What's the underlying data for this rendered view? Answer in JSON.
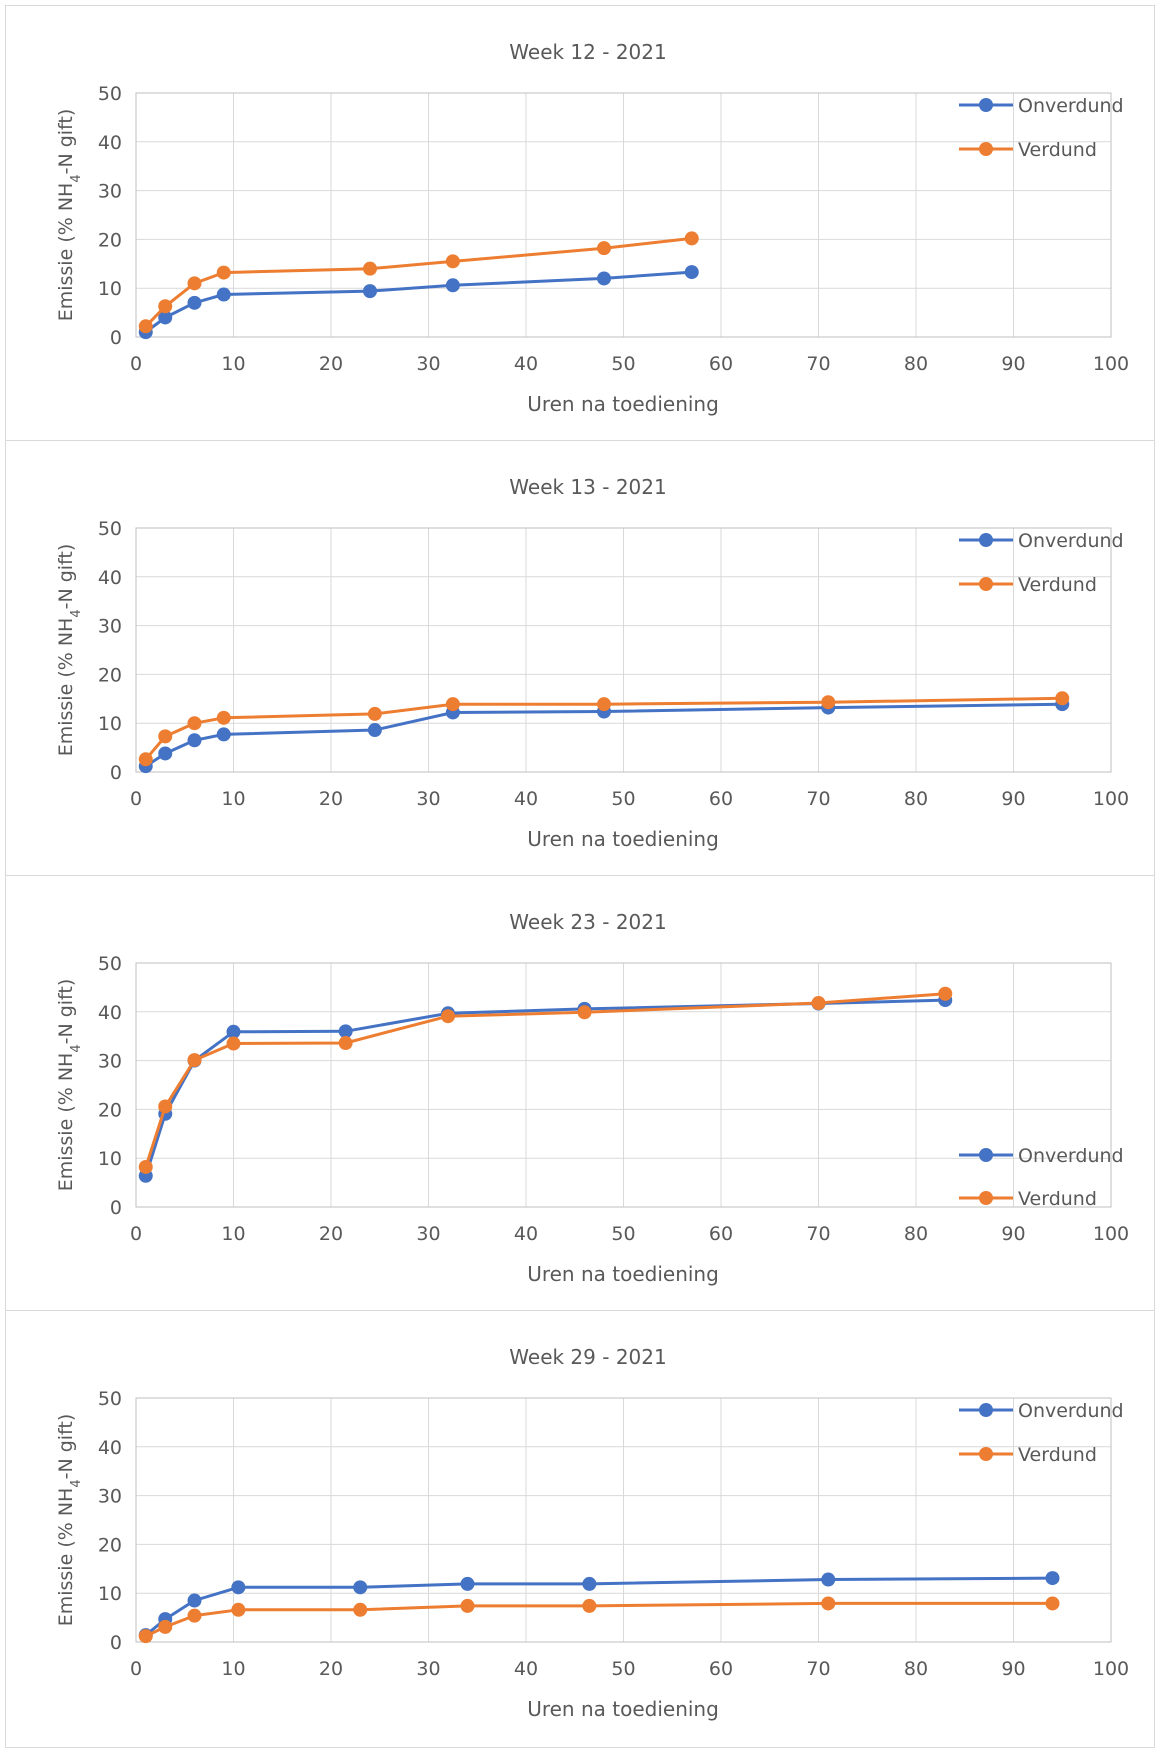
{
  "chart_data": [
    {
      "type": "line",
      "title": "Week 12 - 2021",
      "xlabel": "Uren na toediening",
      "ylabel_parts": [
        "Emissie (% NH",
        "4",
        "-N gift)"
      ],
      "xlim": [
        0,
        100
      ],
      "ylim": [
        0,
        50
      ],
      "xticks": [
        0,
        10,
        20,
        30,
        40,
        50,
        60,
        70,
        80,
        90,
        100
      ],
      "yticks": [
        0,
        10,
        20,
        30,
        40,
        50
      ],
      "grid": true,
      "legend_position": "top-right",
      "series": [
        {
          "name": "Onverdund",
          "color": "#4472c4",
          "x": [
            1,
            3,
            6,
            9,
            24,
            32.5,
            48,
            57
          ],
          "y": [
            1,
            4,
            7,
            8.7,
            9.4,
            10.6,
            12,
            13.3
          ]
        },
        {
          "name": "Verdund",
          "color": "#ed7d31",
          "x": [
            1,
            3,
            6,
            9,
            24,
            32.5,
            48,
            57
          ],
          "y": [
            2.2,
            6.3,
            11,
            13.2,
            14,
            15.5,
            18.2,
            20.2
          ]
        }
      ]
    },
    {
      "type": "line",
      "title": "Week 13 - 2021",
      "xlabel": "Uren na toediening",
      "ylabel_parts": [
        "Emissie (% NH",
        "4",
        "-N gift)"
      ],
      "xlim": [
        0,
        100
      ],
      "ylim": [
        0,
        50
      ],
      "xticks": [
        0,
        10,
        20,
        30,
        40,
        50,
        60,
        70,
        80,
        90,
        100
      ],
      "yticks": [
        0,
        10,
        20,
        30,
        40,
        50
      ],
      "grid": true,
      "legend_position": "top-right",
      "series": [
        {
          "name": "Onverdund",
          "color": "#4472c4",
          "x": [
            1,
            3,
            6,
            9,
            24.5,
            32.5,
            48,
            71,
            95
          ],
          "y": [
            1.2,
            3.8,
            6.5,
            7.7,
            8.6,
            12.2,
            12.4,
            13.2,
            13.9
          ]
        },
        {
          "name": "Verdund",
          "color": "#ed7d31",
          "x": [
            1,
            3,
            6,
            9,
            24.5,
            32.5,
            48,
            71,
            95
          ],
          "y": [
            2.6,
            7.3,
            10,
            11.1,
            11.9,
            13.9,
            13.9,
            14.3,
            15.1
          ]
        }
      ]
    },
    {
      "type": "line",
      "title": "Week 23 - 2021",
      "xlabel": "Uren na toediening",
      "ylabel_parts": [
        "Emissie (% NH",
        "4",
        "-N gift)"
      ],
      "xlim": [
        0,
        100
      ],
      "ylim": [
        0,
        50
      ],
      "xticks": [
        0,
        10,
        20,
        30,
        40,
        50,
        60,
        70,
        80,
        90,
        100
      ],
      "yticks": [
        0,
        10,
        20,
        30,
        40,
        50
      ],
      "grid": true,
      "legend_position": "right",
      "series": [
        {
          "name": "Onverdund",
          "color": "#4472c4",
          "x": [
            1,
            3,
            6,
            10,
            21.5,
            32,
            46,
            70,
            83
          ],
          "y": [
            6.4,
            19.1,
            30,
            35.9,
            36,
            39.7,
            40.6,
            41.7,
            42.4
          ]
        },
        {
          "name": "Verdund",
          "color": "#ed7d31",
          "x": [
            1,
            3,
            6,
            10,
            21.5,
            32,
            46,
            70,
            83
          ],
          "y": [
            8.2,
            20.6,
            30.1,
            33.5,
            33.6,
            39.1,
            39.9,
            41.8,
            43.7
          ]
        }
      ]
    },
    {
      "type": "line",
      "title": "Week 29 - 2021",
      "xlabel": "Uren na toediening",
      "ylabel_parts": [
        "Emissie (% NH",
        "4",
        "-N gift)"
      ],
      "xlim": [
        0,
        100
      ],
      "ylim": [
        0,
        50
      ],
      "xticks": [
        0,
        10,
        20,
        30,
        40,
        50,
        60,
        70,
        80,
        90,
        100
      ],
      "yticks": [
        0,
        10,
        20,
        30,
        40,
        50
      ],
      "grid": true,
      "legend_position": "top-right",
      "series": [
        {
          "name": "Onverdund",
          "color": "#4472c4",
          "x": [
            1,
            3,
            6,
            10.5,
            23,
            34,
            46.5,
            71,
            94
          ],
          "y": [
            1.4,
            4.7,
            8.5,
            11.2,
            11.2,
            11.9,
            11.9,
            12.8,
            13.1
          ]
        },
        {
          "name": "Verdund",
          "color": "#ed7d31",
          "x": [
            1,
            3,
            6,
            10.5,
            23,
            34,
            46.5,
            71,
            94
          ],
          "y": [
            1.2,
            3.1,
            5.4,
            6.6,
            6.6,
            7.4,
            7.4,
            7.9,
            7.9
          ]
        }
      ]
    }
  ]
}
